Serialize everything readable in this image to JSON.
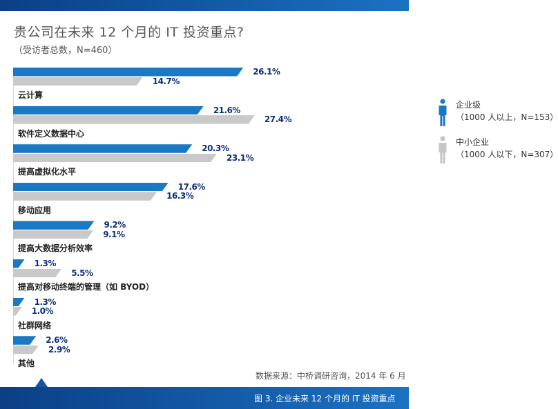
{
  "title": "贵公司在未来 12 个月的 IT 投资重点?",
  "subtitle": "（受访者总数，N=460）",
  "chart_data": {
    "type": "bar",
    "orientation": "horizontal",
    "categories": [
      "云计算",
      "软件定义数据中心",
      "提高虚拟化水平",
      "移动应用",
      "提高大数据分析效率",
      "提高对移动终端的管理（如 BYOD）",
      "社群网络",
      "其他"
    ],
    "series": [
      {
        "name": "企业级",
        "values": [
          26.1,
          21.6,
          20.3,
          17.6,
          9.2,
          1.3,
          1.3,
          2.6
        ],
        "labels": [
          "26.1%",
          "21.6%",
          "20.3%",
          "17.6%",
          "9.2%",
          "1.3%",
          "1.3%",
          "2.6%"
        ],
        "color": "#1b78c4"
      },
      {
        "name": "中小企业",
        "values": [
          14.7,
          27.4,
          23.1,
          16.3,
          9.1,
          5.5,
          1.0,
          2.9
        ],
        "labels": [
          "14.7%",
          "27.4%",
          "23.1%",
          "16.3%",
          "9.1%",
          "5.5%",
          "1.0%",
          "2.9%"
        ],
        "color": "#c9c9c9"
      }
    ],
    "value_unit": "%",
    "xlim": [
      0,
      30
    ],
    "grid": false,
    "legend_position": "right"
  },
  "legend": [
    {
      "name": "企业级",
      "sub": "（1000 人以上，N=153）",
      "icon": "person-icon",
      "color": "#1b78c4"
    },
    {
      "name": "中小企业",
      "sub": "（1000 人以下，N=307）",
      "icon": "person-icon",
      "color": "#c6c6c6"
    }
  ],
  "source": "数据来源：中桥调研咨询，2014 年 6 月",
  "caption": "图 3. 企业未来 12 个月的 IT 投资重点"
}
